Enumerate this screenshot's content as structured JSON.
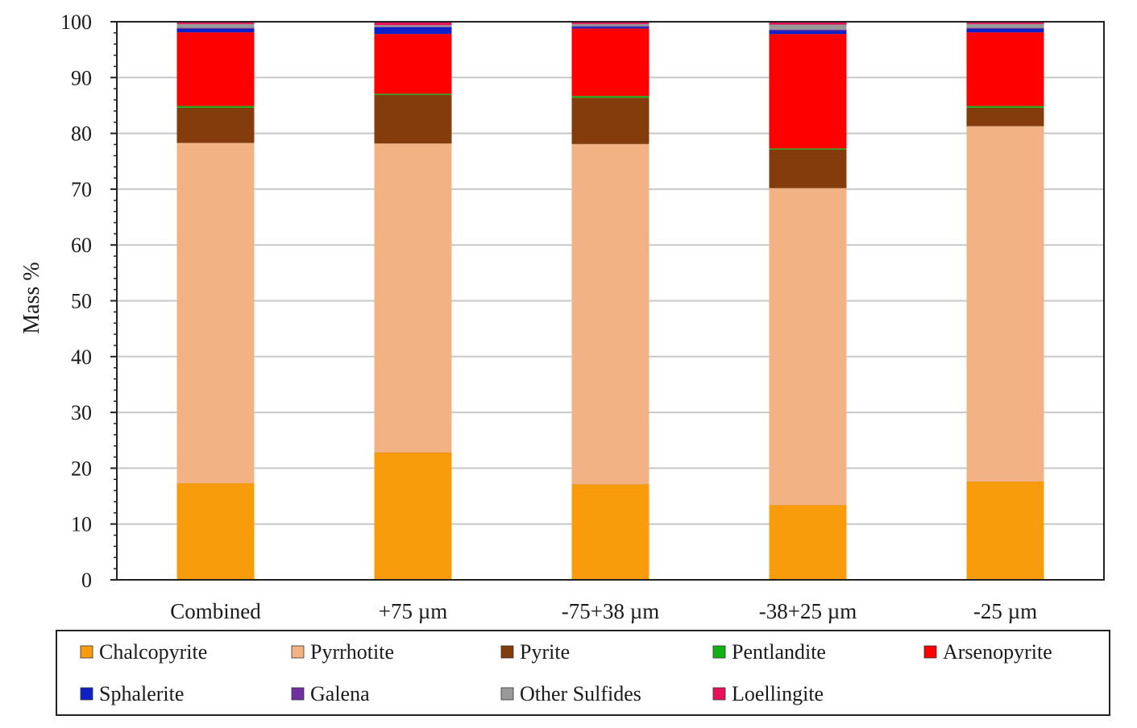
{
  "chart_data": {
    "type": "bar",
    "stacked": true,
    "title": "",
    "xlabel": "",
    "ylabel": "Mass %",
    "ylim": [
      0,
      100
    ],
    "yticks": [
      0,
      10,
      20,
      30,
      40,
      50,
      60,
      70,
      80,
      90,
      100
    ],
    "grid": true,
    "legend_position": "bottom",
    "categories": [
      "Combined",
      "+75 µm",
      "-75+38 µm",
      "-38+25 µm",
      "-25 µm"
    ],
    "series": [
      {
        "name": "Chalcopyrite",
        "color": "#f99c0c",
        "values": [
          17.3,
          22.8,
          17.1,
          13.4,
          17.6
        ]
      },
      {
        "name": "Pyrrhotite",
        "color": "#f2b284",
        "values": [
          61.0,
          55.4,
          61.0,
          56.8,
          63.7
        ]
      },
      {
        "name": "Pyrite",
        "color": "#843c0c",
        "values": [
          6.3,
          8.7,
          8.3,
          6.9,
          3.3
        ]
      },
      {
        "name": "Pentlandite",
        "color": "#12b212",
        "values": [
          0.3,
          0.2,
          0.3,
          0.2,
          0.3
        ]
      },
      {
        "name": "Arsenopyrite",
        "color": "#ff0000",
        "values": [
          13.2,
          10.7,
          12.1,
          20.5,
          13.2
        ]
      },
      {
        "name": "Sphalerite",
        "color": "#1020c8",
        "values": [
          0.6,
          1.2,
          0.3,
          0.6,
          0.6
        ]
      },
      {
        "name": "Galena",
        "color": "#7030a0",
        "values": [
          0.2,
          0.1,
          0.1,
          0.2,
          0.2
        ]
      },
      {
        "name": "Other Sulfides",
        "color": "#9a9a9a",
        "values": [
          0.7,
          0.3,
          0.4,
          0.9,
          0.7
        ]
      },
      {
        "name": "Loellingite",
        "color": "#e8105a",
        "values": [
          0.4,
          0.6,
          0.4,
          0.5,
          0.4
        ]
      }
    ]
  }
}
